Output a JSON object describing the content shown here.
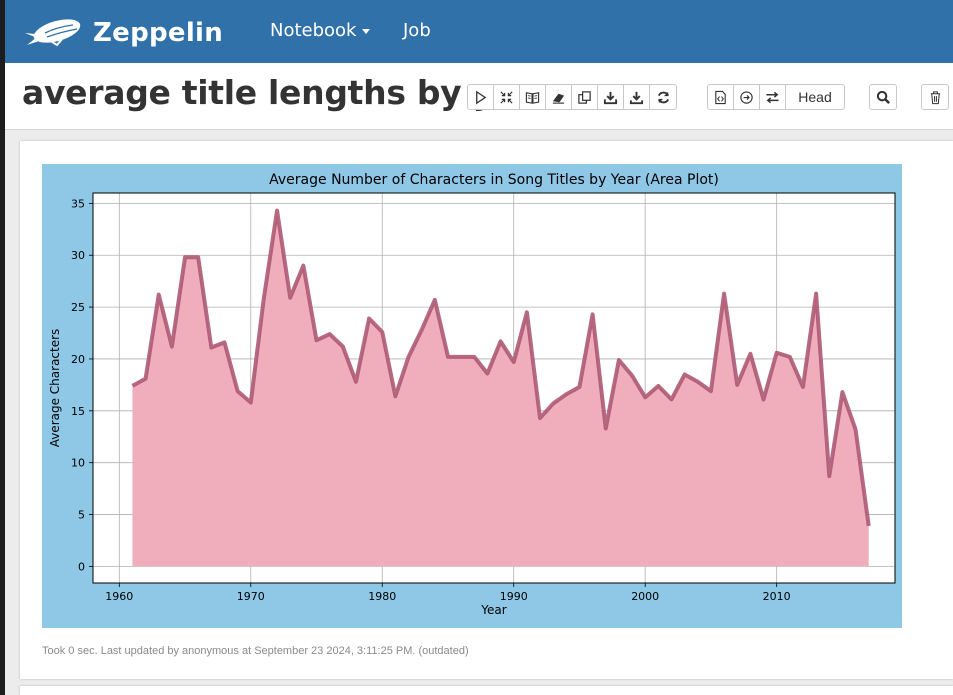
{
  "app": {
    "brand": "Zeppelin",
    "menu": [
      {
        "label": "Notebook"
      },
      {
        "label": "Job"
      }
    ]
  },
  "notebook": {
    "title": "average title lengths by year",
    "toolbar": {
      "group1": [
        "run-all-icon",
        "expand-collapse-icon",
        "book-icon",
        "eraser-icon",
        "clone-icon",
        "export-icon",
        "export-alt-icon",
        "refresh-icon"
      ],
      "group2": [
        "code-file-icon",
        "circle-arrow-icon",
        "swap-icon"
      ],
      "head_label": "Head"
    }
  },
  "paragraph": {
    "status": "Took 0 sec. Last updated by anonymous at September 23 2024, 3:11:25 PM. (outdated)"
  },
  "chart_data": {
    "type": "area",
    "title": "Average Number of Characters in Song Titles by Year (Area Plot)",
    "xlabel": "Year",
    "ylabel": "Average Characters",
    "xlim": [
      1958,
      2019
    ],
    "ylim": [
      -1.6,
      36
    ],
    "xticks": [
      1960,
      1970,
      1980,
      1990,
      2000,
      2010
    ],
    "yticks": [
      0,
      5,
      10,
      15,
      20,
      25,
      30,
      35
    ],
    "grid": true,
    "colors": {
      "fill": "#f0aebd",
      "line": "#ad5a73",
      "background": "#8ec8e6"
    },
    "x": [
      1961,
      1962,
      1963,
      1964,
      1965,
      1966,
      1967,
      1968,
      1969,
      1970,
      1971,
      1972,
      1973,
      1974,
      1975,
      1976,
      1977,
      1978,
      1979,
      1980,
      1981,
      1982,
      1983,
      1984,
      1985,
      1986,
      1987,
      1988,
      1989,
      1990,
      1991,
      1992,
      1993,
      1994,
      1995,
      1996,
      1997,
      1998,
      1999,
      2000,
      2001,
      2002,
      2003,
      2004,
      2005,
      2006,
      2007,
      2008,
      2009,
      2010,
      2011,
      2012,
      2013,
      2014,
      2015,
      2016,
      2017
    ],
    "y": [
      17.4,
      18.1,
      26.2,
      21.2,
      29.8,
      29.8,
      21.1,
      21.6,
      16.9,
      15.8,
      25.9,
      34.3,
      25.9,
      29.0,
      21.8,
      22.4,
      21.2,
      17.8,
      23.9,
      22.6,
      16.4,
      20.2,
      22.8,
      25.7,
      20.2,
      20.2,
      20.2,
      18.6,
      21.7,
      19.7,
      24.5,
      14.3,
      15.7,
      16.6,
      17.3,
      24.3,
      13.3,
      19.9,
      18.4,
      16.3,
      17.4,
      16.1,
      18.5,
      17.8,
      16.9,
      26.3,
      17.5,
      20.5,
      16.1,
      20.6,
      20.2,
      17.3,
      26.3,
      8.7,
      16.8,
      13.2,
      3.9
    ]
  }
}
